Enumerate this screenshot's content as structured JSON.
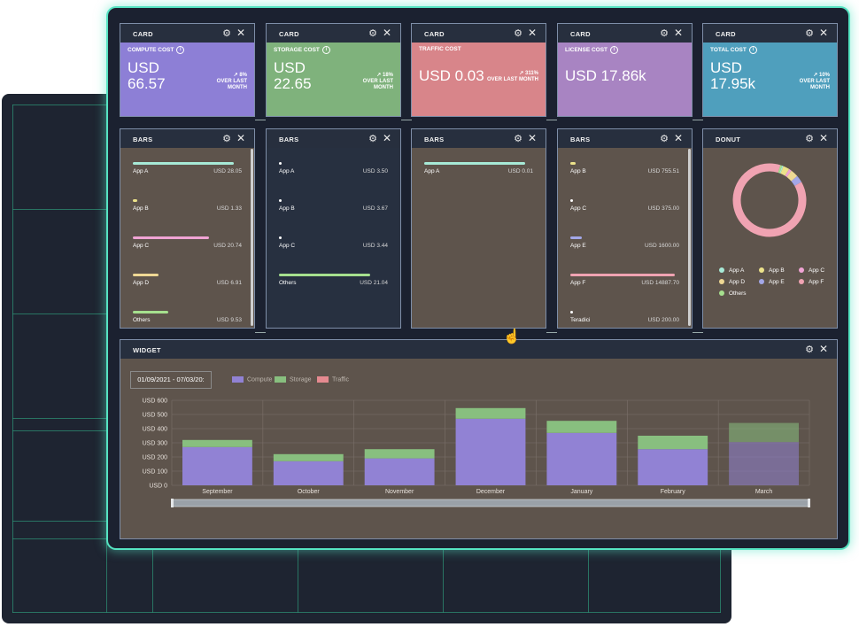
{
  "cards": [
    {
      "title": "CARD",
      "label": "COMPUTE COST",
      "currency": "USD",
      "value": "66.57",
      "trend_pct": "8%",
      "trend_line1": "OVER LAST",
      "trend_line2": "MONTH",
      "color": "#8d7fd6"
    },
    {
      "title": "CARD",
      "label": "STORAGE COST",
      "currency": "USD",
      "value": "22.65",
      "trend_pct": "18%",
      "trend_line1": "OVER LAST",
      "trend_line2": "MONTH",
      "color": "#7fb27c"
    },
    {
      "title": "CARD",
      "label": "TRAFFIC COST",
      "amount": "USD 0.03",
      "trend_pct": "311%",
      "trend_line1": "OVER LAST",
      "trend_line2": "MONTH",
      "color": "#d8858a"
    },
    {
      "title": "CARD",
      "label": "LICENSE COST",
      "amount": "USD 17.86k",
      "color": "#a884c2"
    },
    {
      "title": "CARD",
      "label": "TOTAL COST",
      "currency": "USD",
      "value": "17.95k",
      "trend_pct": "10%",
      "trend_line1": "OVER LAST",
      "trend_line2": "MONTH",
      "color": "#4f9fbd"
    }
  ],
  "bars_panels": [
    {
      "title": "BARS",
      "bg": "#5e544c",
      "rows": [
        {
          "name": "App A",
          "value": "USD 28.05",
          "fill": 0.95,
          "color": "#a7ead7"
        },
        {
          "name": "App B",
          "value": "USD 1.33",
          "fill": 0.04,
          "color": "#ece28a"
        },
        {
          "name": "App C",
          "value": "USD 20.74",
          "fill": 0.72,
          "color": "#f0a3d4"
        },
        {
          "name": "App D",
          "value": "USD 6.91",
          "fill": 0.24,
          "color": "#efd894"
        },
        {
          "name": "Others",
          "value": "USD 9.53",
          "fill": 0.33,
          "color": "#a6e08e"
        }
      ]
    },
    {
      "title": "BARS",
      "bg": "#273040",
      "rows": [
        {
          "name": "App A",
          "value": "USD 3.50",
          "fill": 0.02,
          "color": "#ffffff"
        },
        {
          "name": "App B",
          "value": "USD 3.67",
          "fill": 0.02,
          "color": "#ffffff"
        },
        {
          "name": "App C",
          "value": "USD 3.44",
          "fill": 0.02,
          "color": "#ffffff"
        },
        {
          "name": "Others",
          "value": "USD 21.04",
          "fill": 0.86,
          "color": "#a6e08e"
        }
      ]
    },
    {
      "title": "BARS",
      "bg": "#5e544c",
      "rows": [
        {
          "name": "App A",
          "value": "USD 0.01",
          "fill": 0.95,
          "color": "#a7ead7"
        }
      ]
    },
    {
      "title": "BARS",
      "bg": "#5e544c",
      "rows": [
        {
          "name": "App B",
          "value": "USD 755.51",
          "fill": 0.05,
          "color": "#ece28a"
        },
        {
          "name": "App C",
          "value": "USD 375.00",
          "fill": 0.02,
          "color": "#ffffff"
        },
        {
          "name": "App E",
          "value": "USD 1600.00",
          "fill": 0.11,
          "color": "#a3a7e8"
        },
        {
          "name": "App F",
          "value": "USD 14887.70",
          "fill": 0.98,
          "color": "#f0a3b2"
        },
        {
          "name": "Teradici",
          "value": "USD 200.00",
          "fill": 0.02,
          "color": "#ffffff"
        }
      ]
    }
  ],
  "donut": {
    "title": "DONUT",
    "slices": [
      {
        "name": "App A",
        "value": 0.6,
        "color": "#a7ead7"
      },
      {
        "name": "App B",
        "value": 2.8,
        "color": "#ece28a"
      },
      {
        "name": "App C",
        "value": 1.2,
        "color": "#f0a3d4"
      },
      {
        "name": "App D",
        "value": 3.4,
        "color": "#efd894"
      },
      {
        "name": "App E",
        "value": 3.2,
        "color": "#a3a7e8"
      },
      {
        "name": "App F",
        "value": 88.0,
        "color": "#f0a3b2"
      },
      {
        "name": "Others",
        "value": 0.8,
        "color": "#a6e08e"
      }
    ]
  },
  "widget": {
    "title": "WIDGET",
    "date_range": "01/09/2021 - 07/03/20:"
  },
  "chart_data": {
    "type": "bar",
    "stacked": true,
    "categories": [
      "September",
      "October",
      "November",
      "December",
      "January",
      "February",
      "March"
    ],
    "series": [
      {
        "name": "Compute",
        "color": "#9182d4",
        "values": [
          270,
          170,
          190,
          470,
          370,
          255,
          305
        ]
      },
      {
        "name": "Storage",
        "color": "#88bf7f",
        "values": [
          50,
          50,
          65,
          75,
          85,
          95,
          135
        ]
      },
      {
        "name": "Traffic",
        "color": "#e58a90",
        "values": [
          0,
          0,
          0,
          0,
          0,
          0,
          0
        ]
      }
    ],
    "y_ticks": [
      "USD 0",
      "USD 100",
      "USD 200",
      "USD 300",
      "USD 400",
      "USD 500",
      "USD 600"
    ],
    "ylim": [
      0,
      600
    ],
    "grid": true,
    "legend": "top"
  },
  "icons": {
    "gear": "⚙",
    "close": "✕",
    "trend": "↗",
    "info": "i",
    "hand": "☝"
  }
}
